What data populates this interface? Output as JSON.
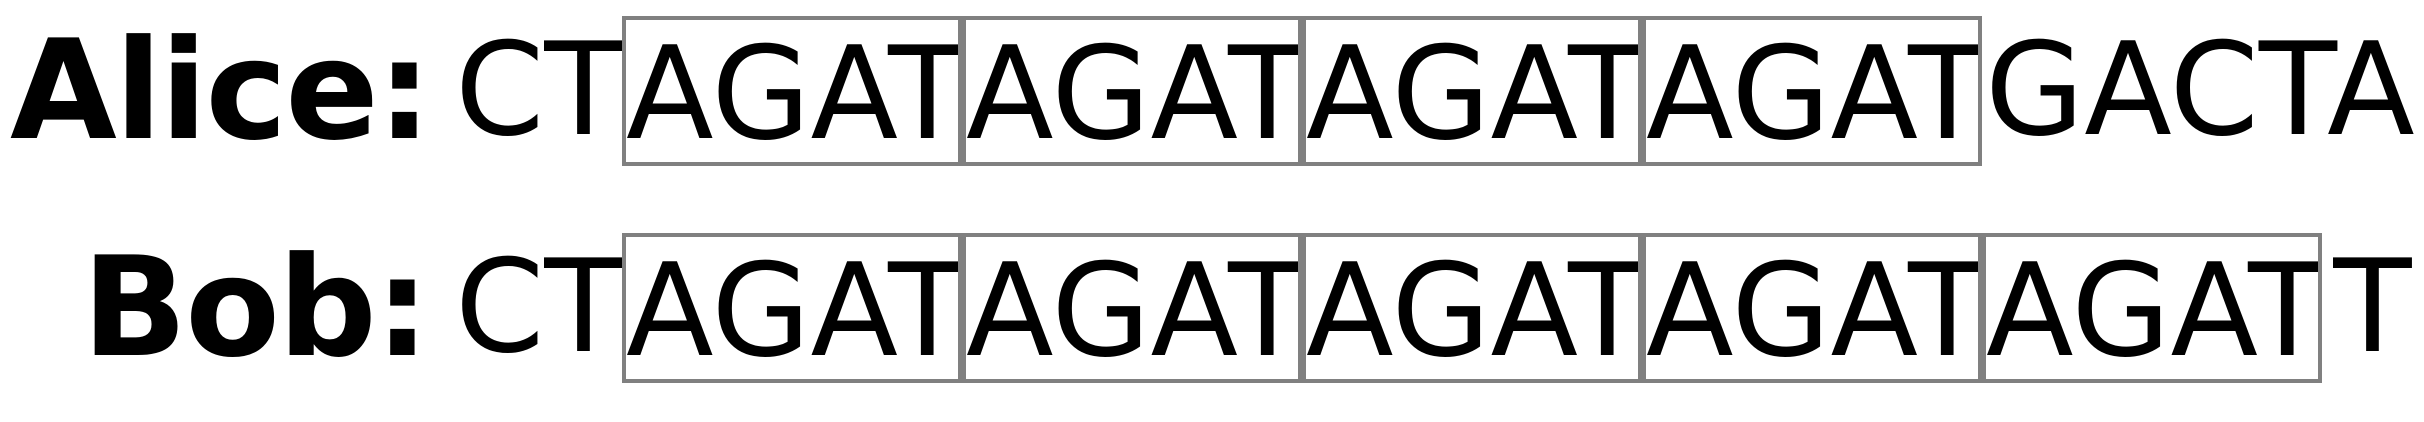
{
  "rows": {
    "alice": {
      "label": "Alice:",
      "prefix": "CT",
      "repeats": [
        "AGAT",
        "AGAT",
        "AGAT",
        "AGAT"
      ],
      "suffix": "GACTA"
    },
    "bob": {
      "label": "Bob:",
      "prefix": "CT",
      "repeats": [
        "AGAT",
        "AGAT",
        "AGAT",
        "AGAT",
        "AGAT"
      ],
      "suffix": "T"
    }
  },
  "colors": {
    "text": "#000000",
    "box_border": "#808080",
    "background": "#ffffff"
  }
}
